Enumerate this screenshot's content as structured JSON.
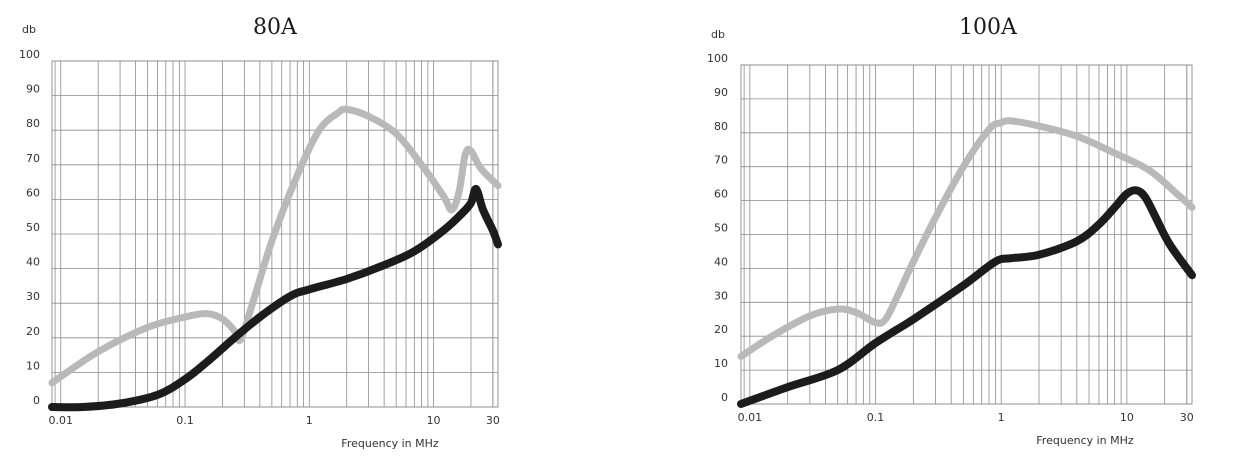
{
  "chart_data": [
    {
      "type": "line",
      "title": "80A",
      "ylabel": "db",
      "xlabel": "Frequency in MHz",
      "x_scale": "log",
      "xlim": [
        0.0085,
        33
      ],
      "ylim": [
        0,
        100
      ],
      "grid": true,
      "x_tick_labels": [
        "0.01",
        "0.1",
        "1",
        "10",
        "30"
      ],
      "x_tick_values": [
        0.01,
        0.1,
        1,
        10,
        30
      ],
      "y_tick_labels": [
        "0",
        "10",
        "20",
        "30",
        "40",
        "50",
        "60",
        "70",
        "80",
        "90",
        "100"
      ],
      "y_tick_values": [
        0,
        10,
        20,
        30,
        40,
        50,
        60,
        70,
        80,
        90,
        100
      ],
      "series": [
        {
          "color": "#b9b9b9",
          "points": [
            [
              0.0085,
              7
            ],
            [
              0.02,
              16
            ],
            [
              0.05,
              23
            ],
            [
              0.1,
              26
            ],
            [
              0.15,
              27
            ],
            [
              0.2,
              25.5
            ],
            [
              0.25,
              22
            ],
            [
              0.28,
              19.5
            ],
            [
              0.35,
              30
            ],
            [
              0.5,
              48
            ],
            [
              0.8,
              67
            ],
            [
              1.2,
              80
            ],
            [
              1.7,
              85
            ],
            [
              2,
              86
            ],
            [
              3,
              84
            ],
            [
              5,
              79
            ],
            [
              8,
              70
            ],
            [
              12,
              61
            ],
            [
              14,
              57
            ],
            [
              16,
              62
            ],
            [
              18,
              73
            ],
            [
              20,
              74
            ],
            [
              24,
              69
            ],
            [
              33,
              64
            ]
          ]
        },
        {
          "color": "#1c1c1c",
          "points": [
            [
              0.0085,
              0
            ],
            [
              0.015,
              0
            ],
            [
              0.03,
              1
            ],
            [
              0.06,
              3.5
            ],
            [
              0.1,
              8
            ],
            [
              0.15,
              13
            ],
            [
              0.25,
              20
            ],
            [
              0.4,
              26
            ],
            [
              0.7,
              32
            ],
            [
              1,
              34
            ],
            [
              2,
              37
            ],
            [
              4,
              41
            ],
            [
              7,
              45
            ],
            [
              12,
              51
            ],
            [
              17,
              56
            ],
            [
              20,
              59
            ],
            [
              22,
              63
            ],
            [
              25,
              57
            ],
            [
              30,
              51
            ],
            [
              33,
              47
            ]
          ]
        }
      ]
    },
    {
      "type": "line",
      "title": "100A",
      "ylabel": "db",
      "xlabel": "Frequency in MHz",
      "x_scale": "log",
      "xlim": [
        0.0085,
        33
      ],
      "ylim": [
        0,
        100
      ],
      "grid": true,
      "x_tick_labels": [
        "0.01",
        "0.1",
        "1",
        "10",
        "30"
      ],
      "x_tick_values": [
        0.01,
        0.1,
        1,
        10,
        30
      ],
      "y_tick_labels": [
        "0",
        "10",
        "20",
        "30",
        "40",
        "50",
        "60",
        "70",
        "80",
        "90",
        "100"
      ],
      "y_tick_values": [
        0,
        10,
        20,
        30,
        40,
        50,
        60,
        70,
        80,
        90,
        100
      ],
      "series": [
        {
          "color": "#b9b9b9",
          "points": [
            [
              0.0085,
              14
            ],
            [
              0.015,
              20
            ],
            [
              0.03,
              26
            ],
            [
              0.05,
              28
            ],
            [
              0.07,
              27
            ],
            [
              0.1,
              24
            ],
            [
              0.12,
              25
            ],
            [
              0.15,
              32
            ],
            [
              0.2,
              42
            ],
            [
              0.3,
              55
            ],
            [
              0.5,
              70
            ],
            [
              0.8,
              81
            ],
            [
              1,
              83
            ],
            [
              1.2,
              83.5
            ],
            [
              2,
              82
            ],
            [
              4,
              79
            ],
            [
              8,
              74
            ],
            [
              15,
              69
            ],
            [
              25,
              62
            ],
            [
              33,
              58
            ]
          ]
        },
        {
          "color": "#1c1c1c",
          "points": [
            [
              0.0085,
              0
            ],
            [
              0.02,
              5
            ],
            [
              0.05,
              10
            ],
            [
              0.1,
              18
            ],
            [
              0.2,
              25
            ],
            [
              0.5,
              35
            ],
            [
              0.9,
              42
            ],
            [
              1.2,
              43
            ],
            [
              2,
              44
            ],
            [
              4,
              48
            ],
            [
              6,
              53
            ],
            [
              8,
              58
            ],
            [
              10,
              62
            ],
            [
              12,
              63
            ],
            [
              14,
              61
            ],
            [
              17,
              55
            ],
            [
              22,
              47
            ],
            [
              33,
              38
            ]
          ]
        }
      ]
    }
  ]
}
